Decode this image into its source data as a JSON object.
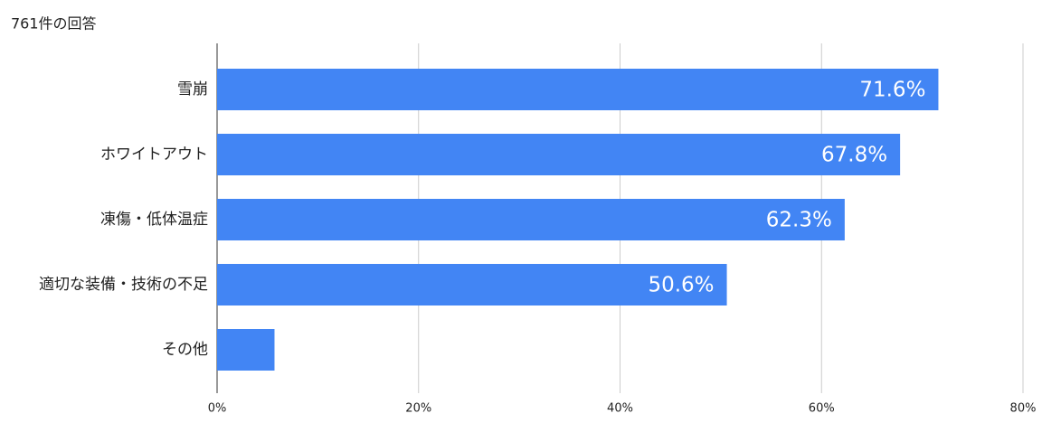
{
  "chart_data": {
    "type": "bar",
    "orientation": "horizontal",
    "title": "761件の回答",
    "categories": [
      "雪崩",
      "ホワイトアウト",
      "凍傷・低体温症",
      "適切な装備・技術の不足",
      "その他"
    ],
    "values": [
      71.6,
      67.8,
      62.3,
      50.6,
      5.7
    ],
    "value_labels": [
      "71.6%",
      "67.8%",
      "62.3%",
      "50.6%",
      null
    ],
    "color": "#4285f4",
    "xlim": [
      0,
      80
    ],
    "xticks": [
      {
        "value": 0,
        "label": "0%"
      },
      {
        "value": 20,
        "label": "20%"
      },
      {
        "value": 40,
        "label": "40%"
      },
      {
        "value": 60,
        "label": "60%"
      },
      {
        "value": 80,
        "label": "80%"
      }
    ],
    "grid": true
  }
}
